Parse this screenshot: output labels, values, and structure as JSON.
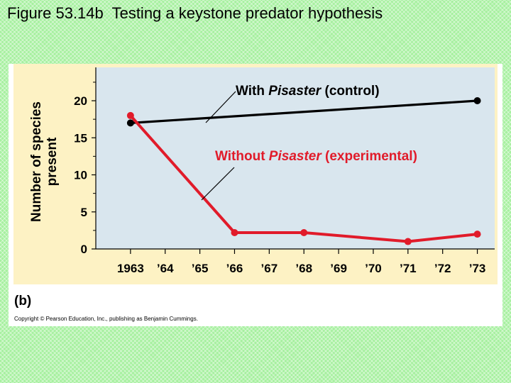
{
  "slide": {
    "title": "Figure 53.14b  Testing a keystone predator hypothesis"
  },
  "figure": {
    "panel_label": "(b)",
    "copyright": "Copyright © Pearson Education, Inc., publishing as Benjamin Cummings."
  },
  "colors": {
    "background": "#a7f0a0",
    "plot_area": "#d9e6ee",
    "frame": "#fdf2c4",
    "control_series": "#000000",
    "experimental_series": "#e11b2a"
  },
  "chart_data": {
    "type": "line",
    "title": "",
    "xlabel": "",
    "ylabel_lines": [
      "Number of species",
      "present"
    ],
    "x_ticks": [
      "1963",
      "’64",
      "’65",
      "’66",
      "’67",
      "’68",
      "’69",
      "’70",
      "’71",
      "’72",
      "’73"
    ],
    "x_range": [
      1962,
      1973.5
    ],
    "y_ticks": [
      0,
      5,
      10,
      15,
      20
    ],
    "ylim": [
      0,
      24.5
    ],
    "grid": false,
    "series": [
      {
        "label_prefix": "With ",
        "label_italic": "Pisaster",
        "label_suffix": " (control)",
        "color": "#000000",
        "x": [
          1963,
          1973
        ],
        "y": [
          17,
          20
        ]
      },
      {
        "label_prefix": "Without ",
        "label_italic": "Pisaster",
        "label_suffix": " (experimental)",
        "color": "#e11b2a",
        "x": [
          1963,
          1966,
          1968,
          1971,
          1973
        ],
        "y": [
          18,
          2.2,
          2.2,
          1,
          2
        ]
      }
    ]
  }
}
